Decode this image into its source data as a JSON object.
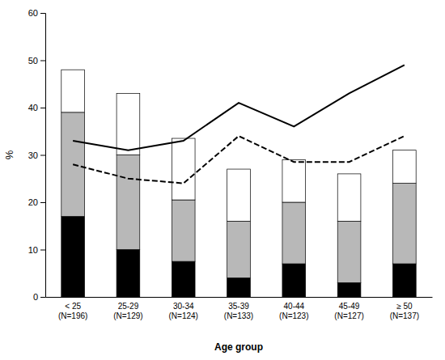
{
  "chart_data": {
    "type": "bar",
    "stacked": true,
    "grid": false,
    "xlabel": "Age group",
    "ylabel": "%",
    "categories": [
      "< 25\n(N=196)",
      "25-29\n(N=129)",
      "30-34\n(N=124)",
      "35-39\n(N=133)",
      "40-44\n(N=123)",
      "45-49\n(N=127)",
      "≥ 50\n(N=137)"
    ],
    "series": [
      {
        "type": "bar",
        "color": "#000000",
        "values": [
          17,
          10,
          7.5,
          4,
          7,
          3,
          7
        ]
      },
      {
        "type": "bar",
        "color": "#b8b8b8",
        "values": [
          22,
          20,
          13,
          12,
          13,
          13,
          17
        ]
      },
      {
        "type": "bar",
        "color": "#ffffff",
        "values": [
          9,
          13,
          13,
          11,
          9,
          10,
          7
        ]
      },
      {
        "type": "line",
        "color": "#000000",
        "line_style": "solid",
        "values": [
          33,
          31,
          33,
          41,
          36,
          43,
          49
        ]
      },
      {
        "type": "line",
        "color": "#000000",
        "line_style": "dashed",
        "values": [
          28,
          25,
          24,
          34,
          28.5,
          28.5,
          34
        ]
      }
    ],
    "ylim": [
      0,
      60
    ],
    "yticks": [
      0,
      10,
      20,
      30,
      40,
      50,
      60
    ]
  }
}
